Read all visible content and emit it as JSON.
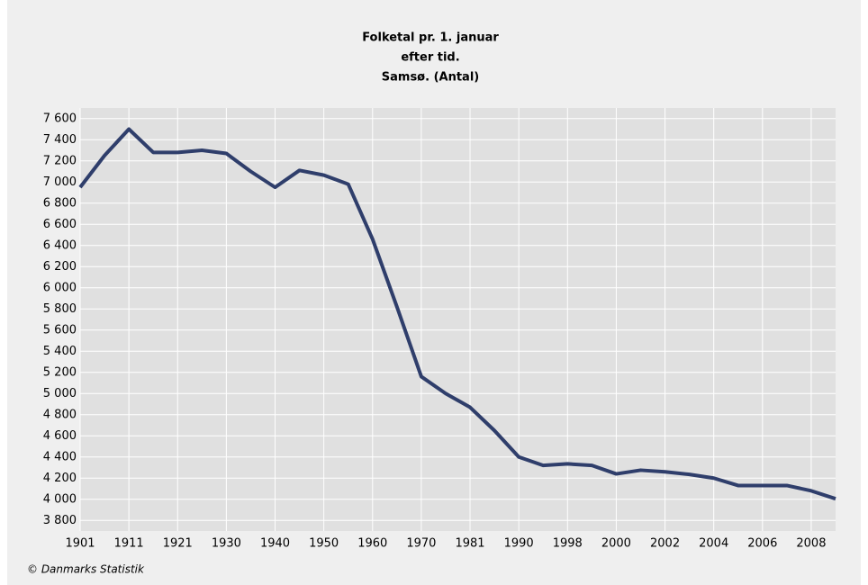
{
  "chart_data": {
    "type": "line",
    "title": [
      "Folketal pr. 1. januar",
      "efter tid.",
      "Samsø. (Antal)"
    ],
    "source": "© Danmarks Statistik",
    "categories": [
      "1901",
      null,
      "1911",
      null,
      "1921",
      null,
      "1930",
      null,
      "1940",
      null,
      "1950",
      null,
      "1960",
      null,
      "1970",
      null,
      "1981",
      null,
      "1990",
      null,
      "1998",
      null,
      "2000",
      null,
      "2002",
      null,
      "2004",
      null,
      "2006",
      null,
      "2008",
      null
    ],
    "series": [
      {
        "name": "Samsø",
        "color": "#2f3e6b",
        "values": [
          6950,
          7250,
          7500,
          7280,
          7280,
          7300,
          7270,
          7100,
          6950,
          7110,
          7065,
          6980,
          6460,
          5820,
          5160,
          5000,
          4870,
          4650,
          4400,
          4320,
          4335,
          4320,
          4240,
          4275,
          4260,
          4235,
          4200,
          4130,
          4130,
          4130,
          4080,
          4005
        ]
      }
    ],
    "ylim": [
      3700,
      7700
    ],
    "yticks": [
      {
        "value": 3800,
        "label": "3 800"
      },
      {
        "value": 4000,
        "label": "4 000"
      },
      {
        "value": 4200,
        "label": "4 200"
      },
      {
        "value": 4400,
        "label": "4 400"
      },
      {
        "value": 4600,
        "label": "4 600"
      },
      {
        "value": 4800,
        "label": "4 800"
      },
      {
        "value": 5000,
        "label": "5 000"
      },
      {
        "value": 5200,
        "label": "5 200"
      },
      {
        "value": 5400,
        "label": "5 400"
      },
      {
        "value": 5600,
        "label": "5 600"
      },
      {
        "value": 5800,
        "label": "5 800"
      },
      {
        "value": 6000,
        "label": "6 000"
      },
      {
        "value": 6200,
        "label": "6 200"
      },
      {
        "value": 6400,
        "label": "6 400"
      },
      {
        "value": 6600,
        "label": "6 600"
      },
      {
        "value": 6800,
        "label": "6 800"
      },
      {
        "value": 7000,
        "label": "7 000"
      },
      {
        "value": 7200,
        "label": "7 200"
      },
      {
        "value": 7400,
        "label": "7 400"
      },
      {
        "value": 7600,
        "label": "7 600"
      }
    ],
    "grid": true
  }
}
